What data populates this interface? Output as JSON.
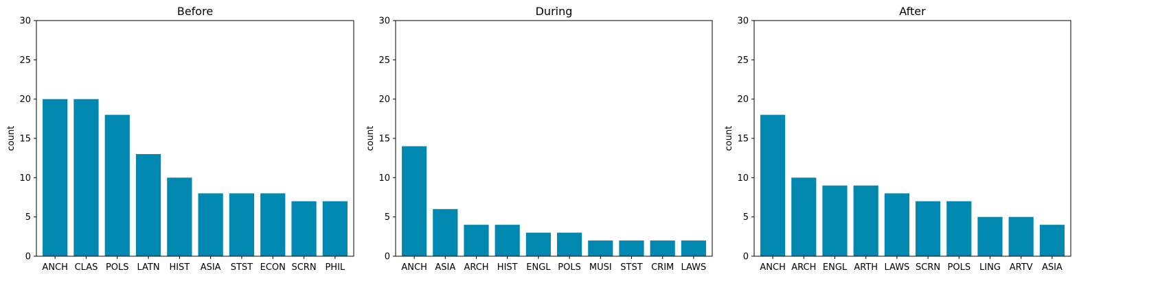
{
  "colors": {
    "bar": "#0088B0",
    "axis": "#000000",
    "background": "#ffffff"
  },
  "chart_data": [
    {
      "type": "bar",
      "title": "Before",
      "ylabel": "count",
      "ylim": [
        0,
        30
      ],
      "yticks": [
        0,
        5,
        10,
        15,
        20,
        25,
        30
      ],
      "categories": [
        "ANCH",
        "CLAS",
        "POLS",
        "LATN",
        "HIST",
        "ASIA",
        "STST",
        "ECON",
        "SCRN",
        "PHIL"
      ],
      "values": [
        20,
        20,
        18,
        13,
        10,
        8,
        8,
        8,
        7,
        7
      ]
    },
    {
      "type": "bar",
      "title": "During",
      "ylabel": "count",
      "ylim": [
        0,
        30
      ],
      "yticks": [
        0,
        5,
        10,
        15,
        20,
        25,
        30
      ],
      "categories": [
        "ANCH",
        "ASIA",
        "ARCH",
        "HIST",
        "ENGL",
        "POLS",
        "MUSI",
        "STST",
        "CRIM",
        "LAWS"
      ],
      "values": [
        14,
        6,
        4,
        4,
        3,
        3,
        2,
        2,
        2,
        2
      ]
    },
    {
      "type": "bar",
      "title": "After",
      "ylabel": "count",
      "ylim": [
        0,
        30
      ],
      "yticks": [
        0,
        5,
        10,
        15,
        20,
        25,
        30
      ],
      "categories": [
        "ANCH",
        "ARCH",
        "ENGL",
        "ARTH",
        "LAWS",
        "SCRN",
        "POLS",
        "LING",
        "ARTV",
        "ASIA"
      ],
      "values": [
        18,
        10,
        9,
        9,
        8,
        7,
        7,
        5,
        5,
        4
      ]
    }
  ]
}
